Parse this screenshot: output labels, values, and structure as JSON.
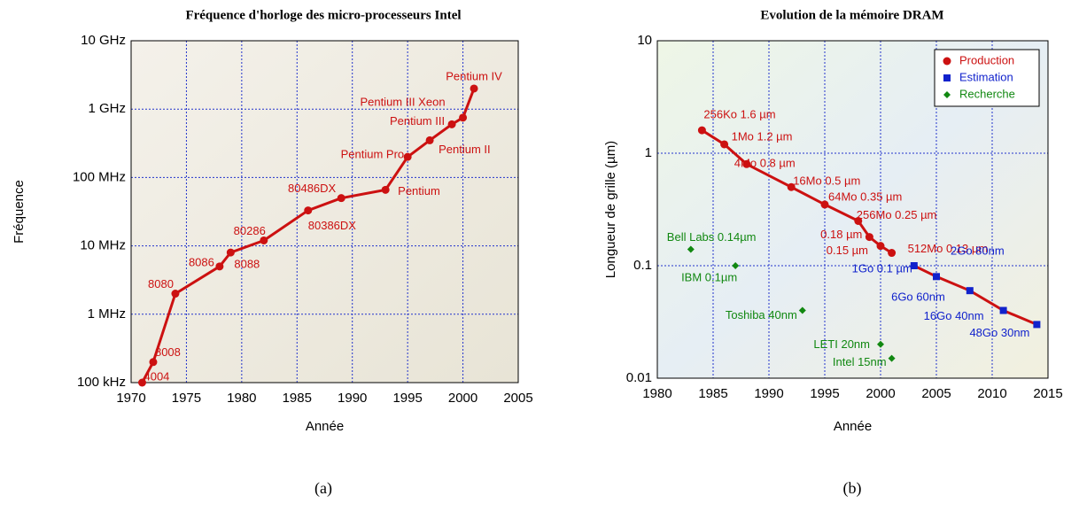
{
  "chart_data": [
    {
      "type": "line",
      "title": "Fréquence d'horloge des micro-processeurs Intel",
      "x_label": "Année",
      "y_label": "Fréquence",
      "caption": "(a)",
      "x": [
        1971,
        1972,
        1974,
        1978,
        1979,
        1982,
        1986,
        1989,
        1993,
        1995,
        1997,
        1999,
        2000,
        2001
      ],
      "series": [
        {
          "name": "Intel",
          "color": "#cc1111",
          "values": [
            100000,
            200000,
            2000000,
            5000000,
            8000000,
            12000000,
            33000000,
            50000000,
            66000000,
            200000000,
            350000000,
            600000000,
            750000000,
            2000000000
          ],
          "labels": [
            "4004",
            "8008",
            "8080",
            "8086",
            "8088",
            "80286",
            "80386DX",
            "80486DX",
            "Pentium",
            "Pentium Pro",
            "Pentium II",
            "Pentium III",
            "Pentium III Xeon",
            "Pentium IV"
          ]
        }
      ],
      "xlim": [
        1970,
        2005
      ],
      "xticks": [
        1970,
        1975,
        1980,
        1985,
        1990,
        1995,
        2000,
        2005
      ],
      "ylim": [
        100000,
        10000000000
      ],
      "log_y": true,
      "grid": true,
      "yticks": [
        {
          "value": 100000,
          "label": "100 kHz"
        },
        {
          "value": 1000000,
          "label": "1 MHz"
        },
        {
          "value": 10000000,
          "label": "10 MHz"
        },
        {
          "value": 100000000,
          "label": "100 MHz"
        },
        {
          "value": 1000000000,
          "label": "1 GHz"
        },
        {
          "value": 10000000000,
          "label": "10 GHz"
        }
      ]
    },
    {
      "type": "scatter",
      "title": "Evolution de la mémoire DRAM",
      "x_label": "Année",
      "y_label": "Longueur de grille (µm)",
      "caption": "(b)",
      "xlim": [
        1980,
        2015
      ],
      "xticks": [
        1980,
        1985,
        1990,
        1995,
        2000,
        2005,
        2010,
        2015
      ],
      "ylim": [
        0.01,
        10
      ],
      "yticks": [
        0.01,
        0.1,
        1,
        10
      ],
      "log_y": true,
      "grid": true,
      "legend": "upper right",
      "series": [
        {
          "name": "Production",
          "color": "#cc1111",
          "marker": "circle",
          "line": true,
          "x": [
            1984,
            1986,
            1988,
            1992,
            1995,
            1998,
            1999,
            2000,
            2001
          ],
          "values": [
            1.6,
            1.2,
            0.8,
            0.5,
            0.35,
            0.25,
            0.18,
            0.15,
            0.13
          ],
          "labels": [
            "256Ko 1.6 µm",
            "1Mo 1.2 µm",
            "4Mo 0.8 µm",
            "16Mo 0.5 µm",
            "64Mo 0.35 µm",
            "256Mo 0.25 µm",
            "0.18 µm",
            "0.15 µm",
            "512Mo 0.13 µm"
          ]
        },
        {
          "name": "Estimation",
          "color": "#1122cc",
          "marker": "square",
          "line": true,
          "x": [
            2003,
            2005,
            2008,
            2011,
            2014
          ],
          "values": [
            0.1,
            0.08,
            0.06,
            0.04,
            0.03
          ],
          "labels": [
            "1Go 0.1 µm",
            "2Go 80nm",
            "6Go 60nm",
            "16Go 40nm",
            "48Go 30nm"
          ]
        },
        {
          "name": "Recherche",
          "color": "#118811",
          "marker": "diamond",
          "line": false,
          "x": [
            1983,
            1987,
            1993,
            2000,
            2001
          ],
          "values": [
            0.14,
            0.1,
            0.04,
            0.02,
            0.015
          ],
          "labels": [
            "Bell Labs 0.14µm",
            "IBM 0.1µm",
            "Toshiba 40nm",
            "LETI 20nm",
            "Intel 15nm"
          ]
        }
      ]
    }
  ]
}
